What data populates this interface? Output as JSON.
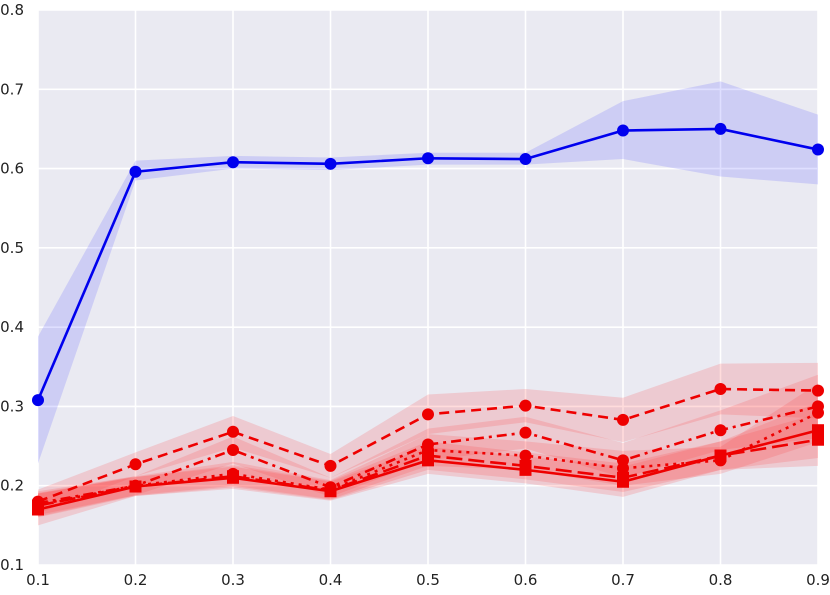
{
  "chart_data": {
    "type": "line",
    "title": "",
    "xlabel": "",
    "ylabel": "",
    "xlim": [
      0.1,
      0.9
    ],
    "ylim": [
      0.1,
      0.8
    ],
    "grid": true,
    "x_ticks": [
      "0.1",
      "0.2",
      "0.3",
      "0.4",
      "0.5",
      "0.6",
      "0.7",
      "0.8",
      "0.9"
    ],
    "y_ticks": [
      "0.1",
      "0.2",
      "0.3",
      "0.4",
      "0.5",
      "0.6",
      "0.7",
      "0.8"
    ],
    "x": [
      0.1,
      0.2,
      0.3,
      0.4,
      0.5,
      0.6,
      0.7,
      0.8,
      0.9
    ],
    "series": [
      {
        "color": "#0000ee",
        "linestyle": "solid",
        "marker": "circle",
        "values": [
          0.308,
          0.596,
          0.608,
          0.606,
          0.613,
          0.612,
          0.648,
          0.65,
          0.624
        ],
        "band_lower": [
          0.228,
          0.585,
          0.6,
          0.598,
          0.605,
          0.605,
          0.612,
          0.59,
          0.58
        ],
        "band_upper": [
          0.388,
          0.61,
          0.616,
          0.614,
          0.62,
          0.62,
          0.685,
          0.71,
          0.668
        ]
      },
      {
        "color": "#ee0000",
        "linestyle": "dashed",
        "marker": "circle",
        "values": [
          0.18,
          0.227,
          0.268,
          0.225,
          0.29,
          0.301,
          0.283,
          0.322,
          0.32
        ],
        "band_lower": [
          0.165,
          0.212,
          0.248,
          0.21,
          0.265,
          0.28,
          0.255,
          0.29,
          0.285
        ],
        "band_upper": [
          0.195,
          0.242,
          0.288,
          0.24,
          0.315,
          0.322,
          0.311,
          0.354,
          0.355
        ]
      },
      {
        "color": "#ee0000",
        "linestyle": "dashdot",
        "marker": "circle",
        "values": [
          0.178,
          0.2,
          0.245,
          0.198,
          0.252,
          0.267,
          0.232,
          0.27,
          0.3
        ],
        "band_lower": [
          0.163,
          0.188,
          0.228,
          0.186,
          0.232,
          0.247,
          0.21,
          0.245,
          0.26
        ],
        "band_upper": [
          0.193,
          0.212,
          0.262,
          0.21,
          0.272,
          0.287,
          0.254,
          0.295,
          0.34
        ]
      },
      {
        "color": "#ee0000",
        "linestyle": "dotted",
        "marker": "circle",
        "values": [
          0.176,
          0.2,
          0.215,
          0.195,
          0.245,
          0.238,
          0.222,
          0.232,
          0.292
        ],
        "band_lower": [
          0.161,
          0.188,
          0.2,
          0.183,
          0.225,
          0.22,
          0.2,
          0.215,
          0.255
        ],
        "band_upper": [
          0.191,
          0.212,
          0.23,
          0.207,
          0.265,
          0.256,
          0.244,
          0.249,
          0.329
        ]
      },
      {
        "color": "#ee0000",
        "linestyle": "longdash",
        "marker": "square",
        "values": [
          0.175,
          0.199,
          0.212,
          0.194,
          0.238,
          0.225,
          0.21,
          0.238,
          0.258
        ],
        "band_lower": [
          0.16,
          0.187,
          0.198,
          0.182,
          0.22,
          0.208,
          0.192,
          0.22,
          0.225
        ],
        "band_upper": [
          0.19,
          0.211,
          0.226,
          0.206,
          0.256,
          0.242,
          0.228,
          0.256,
          0.291
        ]
      },
      {
        "color": "#ee0000",
        "linestyle": "solid",
        "marker": "square",
        "values": [
          0.17,
          0.199,
          0.21,
          0.193,
          0.232,
          0.22,
          0.205,
          0.238,
          0.27
        ],
        "band_lower": [
          0.15,
          0.187,
          0.196,
          0.181,
          0.215,
          0.203,
          0.186,
          0.22,
          0.235
        ],
        "band_upper": [
          0.19,
          0.211,
          0.224,
          0.205,
          0.249,
          0.237,
          0.224,
          0.256,
          0.305
        ]
      }
    ]
  }
}
